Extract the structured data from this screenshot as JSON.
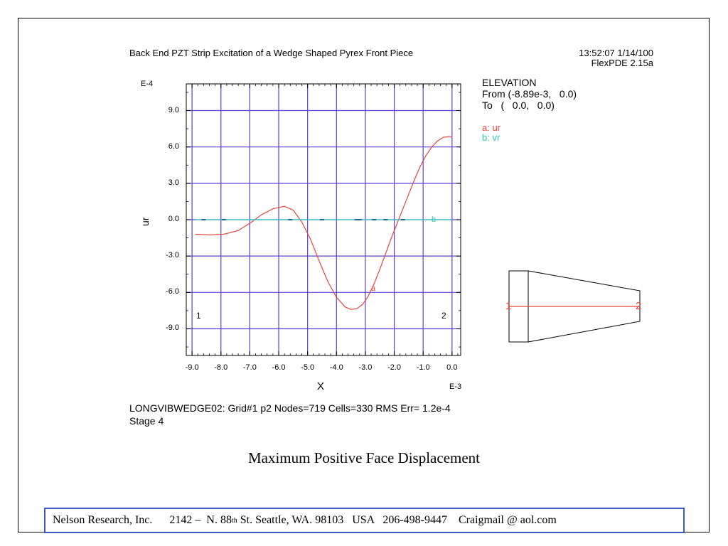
{
  "header": {
    "title": "Back End PZT Strip Excitation of a Wedge Shaped Pyrex Front Piece",
    "timestamp": "13:52:07 1/14/100",
    "version": "FlexPDE 2.15a"
  },
  "legend": {
    "heading": "ELEVATION",
    "from_line": "From (-8.89e-3,   0.0)",
    "to_line": "To   (   0.0,   0.0)",
    "series_a": "a: ur",
    "series_b": "b: vr"
  },
  "chart_data": {
    "type": "line",
    "xlabel": "X",
    "ylabel": "ur",
    "y_exponent": "E-4",
    "x_exponent": "E-3",
    "xlim": [
      -9.2,
      0.3
    ],
    "ylim": [
      -11.2,
      11.2
    ],
    "x_ticks": [
      "-9.0",
      "-8.0",
      "-7.0",
      "-6.0",
      "-5.0",
      "-4.0",
      "-3.0",
      "-2.0",
      "-1.0",
      "0.0"
    ],
    "x_tick_values": [
      -9,
      -8,
      -7,
      -6,
      -5,
      -4,
      -3,
      -2,
      -1,
      0
    ],
    "y_ticks": [
      "9.0",
      "6.0",
      "3.0",
      "0.0",
      "-3.0",
      "-6.0",
      "-9.0"
    ],
    "y_tick_values": [
      9,
      6,
      3,
      0,
      -3,
      -6,
      -9
    ],
    "grid": true,
    "endpoint_labels": [
      "1",
      "2"
    ],
    "series": [
      {
        "name": "ur",
        "marker": "a",
        "color": "#e8453c",
        "x": [
          -8.89,
          -8.4,
          -7.9,
          -7.4,
          -7.0,
          -6.6,
          -6.2,
          -5.8,
          -5.5,
          -5.2,
          -4.9,
          -4.6,
          -4.3,
          -4.0,
          -3.7,
          -3.5,
          -3.3,
          -3.1,
          -2.9,
          -2.7,
          -2.5,
          -2.3,
          -2.1,
          -1.9,
          -1.7,
          -1.5,
          -1.3,
          -1.1,
          -0.9,
          -0.7,
          -0.5,
          -0.3,
          -0.1,
          0.0
        ],
        "y": [
          -1.2,
          -1.25,
          -1.2,
          -0.9,
          -0.3,
          0.4,
          0.9,
          1.1,
          0.8,
          -0.2,
          -1.6,
          -3.4,
          -5.1,
          -6.4,
          -7.2,
          -7.4,
          -7.35,
          -7.0,
          -6.3,
          -5.3,
          -4.1,
          -2.8,
          -1.5,
          -0.3,
          0.9,
          2.1,
          3.3,
          4.4,
          5.3,
          6.0,
          6.5,
          6.8,
          6.85,
          6.8
        ]
      },
      {
        "name": "vr",
        "marker": "b",
        "color": "#2ec7b8",
        "x": [
          -8.89,
          0.0
        ],
        "y": [
          0.0,
          0.0
        ]
      }
    ]
  },
  "footnote": {
    "run_line": "LONGVIBWEDGE02:  Grid#1  p2  Nodes=719 Cells=330 RMS Err= 1.2e-4",
    "stage": "Stage 4"
  },
  "inset": {
    "label_left": "1",
    "label_right": "2"
  },
  "caption": "Maximum Positive Face Displacement",
  "footer": {
    "company": "Nelson Research, Inc.",
    "addr_pre": "2142 –  N. 88",
    "addr_sup": "th",
    "addr_post": " St. Seattle, WA. 98103   USA   206-498-9447    Craigmail @ aol.com"
  }
}
